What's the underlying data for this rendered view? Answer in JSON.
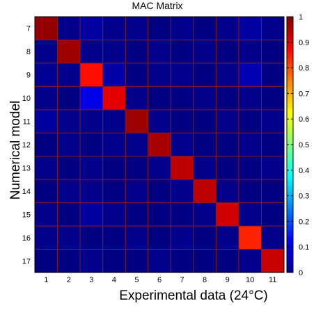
{
  "chart_data": {
    "type": "heatmap",
    "title": "MAC Matrix",
    "xlabel": "Experimental data (24°C)",
    "ylabel": "Numerical model",
    "x_categories": [
      "1",
      "2",
      "3",
      "4",
      "5",
      "6",
      "7",
      "8",
      "9",
      "10",
      "11"
    ],
    "y_categories": [
      "7",
      "8",
      "9",
      "10",
      "11",
      "12",
      "13",
      "14",
      "15",
      "16",
      "17"
    ],
    "values": [
      [
        0.98,
        0.01,
        0.03,
        0.01,
        0.01,
        0.0,
        0.01,
        0.0,
        0.01,
        0.03,
        0.01
      ],
      [
        0.01,
        0.97,
        0.01,
        0.01,
        0.0,
        0.01,
        0.0,
        0.01,
        0.0,
        0.01,
        0.0
      ],
      [
        0.02,
        0.01,
        0.86,
        0.04,
        0.0,
        0.01,
        0.01,
        0.0,
        0.01,
        0.05,
        0.0
      ],
      [
        0.01,
        0.0,
        0.1,
        0.9,
        0.01,
        0.0,
        0.0,
        0.01,
        0.0,
        0.01,
        0.0
      ],
      [
        0.03,
        0.01,
        0.01,
        0.01,
        0.97,
        0.01,
        0.0,
        0.0,
        0.01,
        0.0,
        0.01
      ],
      [
        0.0,
        0.01,
        0.0,
        0.01,
        0.01,
        0.96,
        0.01,
        0.0,
        0.0,
        0.01,
        0.0
      ],
      [
        0.01,
        0.0,
        0.01,
        0.0,
        0.0,
        0.01,
        0.94,
        0.01,
        0.0,
        0.0,
        0.01
      ],
      [
        0.0,
        0.01,
        0.01,
        0.0,
        0.01,
        0.0,
        0.01,
        0.94,
        0.01,
        0.0,
        0.0
      ],
      [
        0.01,
        0.0,
        0.03,
        0.01,
        0.0,
        0.0,
        0.0,
        0.01,
        0.92,
        0.01,
        0.0
      ],
      [
        0.01,
        0.01,
        0.0,
        0.0,
        0.01,
        0.0,
        0.01,
        0.0,
        0.01,
        0.84,
        0.01
      ],
      [
        0.0,
        0.0,
        0.01,
        0.0,
        0.0,
        0.01,
        0.0,
        0.0,
        0.0,
        0.01,
        0.93
      ]
    ],
    "colormap": "jet",
    "clim": [
      0,
      1
    ],
    "grid": true,
    "grid_color": "#8b1a1a",
    "colorbar": {
      "position": "right",
      "ticks": [
        "0",
        "0.1",
        "0.2",
        "0.3",
        "0.4",
        "0.5",
        "0.6",
        "0.7",
        "0.8",
        "0.9",
        "1"
      ]
    }
  }
}
